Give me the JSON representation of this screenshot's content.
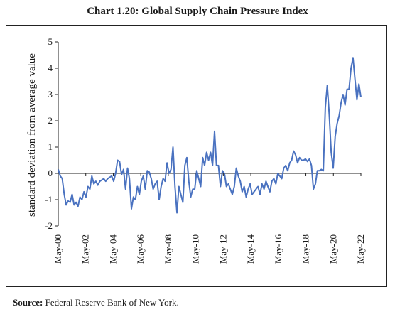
{
  "chart_data": {
    "type": "line",
    "title": "Chart 1.20: Global Supply Chain Pressure Index",
    "ylabel": "standard deviation from average value",
    "xlabel": "",
    "ylim": [
      -2,
      5
    ],
    "yticks": [
      -2,
      -1,
      0,
      1,
      2,
      3,
      4,
      5
    ],
    "ytick_labels": [
      "-2",
      "-1",
      "0",
      "1",
      "2",
      "3",
      "4",
      "5"
    ],
    "xticks": [
      "May-00",
      "May-02",
      "May-04",
      "May-06",
      "May-08",
      "May-10",
      "May-12",
      "May-14",
      "May-16",
      "May-18",
      "May-20",
      "May-22"
    ],
    "x_start": "May-00",
    "x_end": "May-22",
    "grid": false,
    "line_color": "#4a72c0",
    "series": [
      {
        "values": [
          0.15,
          -0.1,
          -0.2,
          -0.8,
          -1.2,
          -1.05,
          -1.1,
          -0.8,
          -1.2,
          -1.1,
          -1.25,
          -0.9,
          -1.0,
          -0.7,
          -0.9,
          -0.5,
          -0.6,
          -0.1,
          -0.4,
          -0.3,
          -0.45,
          -0.3,
          -0.25,
          -0.2,
          -0.3,
          -0.2,
          -0.15,
          -0.1,
          -0.3,
          0.0,
          0.5,
          0.45,
          -0.05,
          0.15,
          -0.6,
          0.2,
          -0.2,
          -1.35,
          -0.9,
          -1.0,
          -0.5,
          -0.8,
          -0.3,
          -0.1,
          -0.6,
          0.1,
          0.05,
          -0.2,
          -0.6,
          -0.4,
          -0.3,
          -1.0,
          -0.5,
          -0.2,
          -0.3,
          0.4,
          0.0,
          0.15,
          1.0,
          -0.5,
          -1.5,
          -0.5,
          -0.8,
          -1.1,
          0.3,
          0.6,
          -0.3,
          -0.9,
          -0.6,
          -0.6,
          0.1,
          -0.2,
          -0.5,
          0.6,
          0.3,
          0.8,
          0.5,
          0.8,
          0.3,
          1.6,
          0.3,
          0.3,
          -0.5,
          0.1,
          0.0,
          -0.5,
          -0.4,
          -0.6,
          -0.8,
          -0.5,
          0.2,
          -0.1,
          -0.3,
          -0.7,
          -0.5,
          -0.9,
          -0.6,
          -0.4,
          -0.8,
          -0.7,
          -0.6,
          -0.5,
          -0.8,
          -0.4,
          -0.6,
          -0.3,
          -0.5,
          -0.7,
          -0.3,
          -0.2,
          -0.4,
          0.0,
          -0.1,
          -0.2,
          0.2,
          0.3,
          0.1,
          0.4,
          0.5,
          0.85,
          0.7,
          0.4,
          0.6,
          0.5,
          0.5,
          0.55,
          0.45,
          0.55,
          0.3,
          -0.6,
          -0.4,
          0.1,
          0.1,
          0.15,
          0.1,
          2.5,
          3.35,
          2.2,
          0.8,
          0.2,
          1.4,
          1.9,
          2.2,
          2.7,
          3.0,
          2.6,
          3.2,
          3.2,
          4.0,
          4.4,
          3.6,
          2.8,
          3.4,
          2.9
        ]
      }
    ]
  },
  "source": {
    "label": "Source:",
    "text": "Federal Reserve Bank of New York."
  }
}
